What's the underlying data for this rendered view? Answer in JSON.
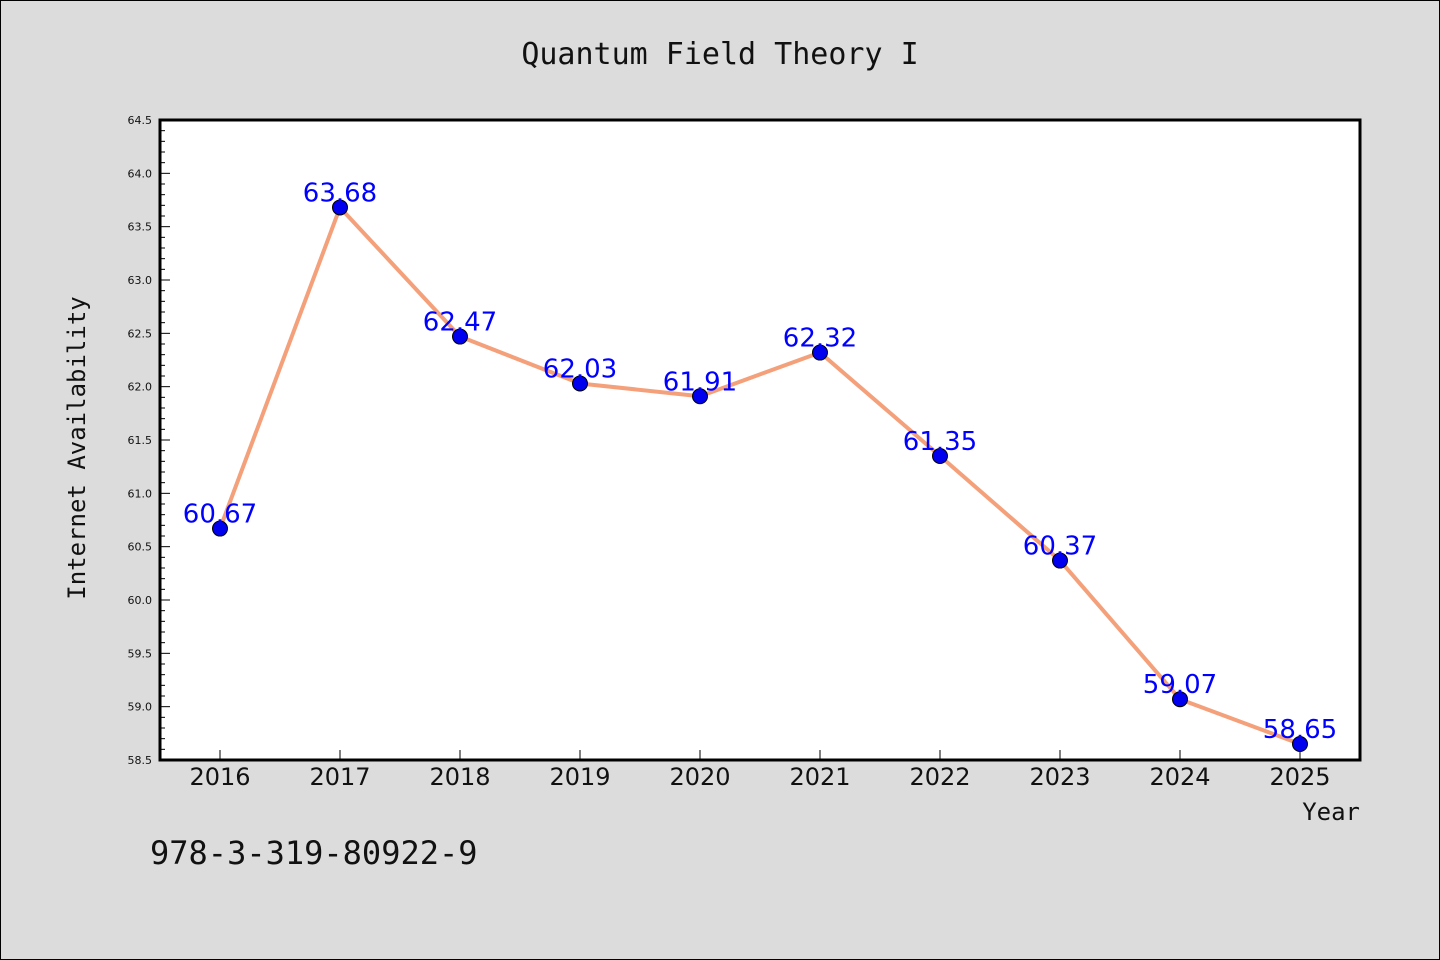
{
  "chart_data": {
    "type": "line",
    "title": "Quantum Field Theory I",
    "xlabel": "Year",
    "ylabel": "Internet Availability",
    "categories": [
      "2016",
      "2017",
      "2018",
      "2019",
      "2020",
      "2021",
      "2022",
      "2023",
      "2024",
      "2025"
    ],
    "series": [
      {
        "values": [
          60.67,
          63.68,
          62.47,
          62.03,
          61.91,
          62.32,
          61.35,
          60.37,
          59.07,
          58.65
        ],
        "data_labels": [
          "60.67",
          "63.68",
          "62.47",
          "62.03",
          "61.91",
          "62.32",
          "61.35",
          "60.37",
          "59.07",
          "58.65"
        ],
        "line_color": "#f4a07a",
        "marker_color": "#0000ee"
      }
    ],
    "ylim": [
      58.5,
      64.5
    ],
    "yticks": [
      "58.5",
      "59.0",
      "59.5",
      "60.0",
      "60.5",
      "61.0",
      "61.5",
      "62.0",
      "62.5",
      "63.0",
      "63.5",
      "64.0",
      "64.5"
    ],
    "grid": false,
    "legend": "none"
  },
  "footnote": "978-3-319-80922-9"
}
